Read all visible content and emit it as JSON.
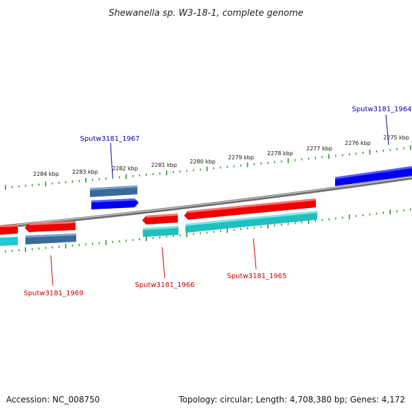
{
  "title": "Shewanella sp. W3-18-1, complete genome",
  "footer": {
    "accession": "Accession: NC_008750",
    "summary": "Topology: circular; Length: 4,708,380 bp; Genes: 4,172"
  },
  "kbp_labels": [
    "2284 kbp",
    "2283 kbp",
    "2282 kbp",
    "2281 kbp",
    "2280 kbp",
    "2279 kbp",
    "2278 kbp",
    "2277 kbp",
    "2276 kbp",
    "2275 kbp"
  ],
  "gene_labels": {
    "g1964": "Sputw3181_1964",
    "g1967": "Sputw3181_1967",
    "g1966": "Sputw3181_1966",
    "g1965": "Sputw3181_1965",
    "g1969": "Sputw3181_1969"
  },
  "colors": {
    "forward_cds": "#0000ee",
    "forward_gene": "#3a6a9a",
    "reverse_cds": "#ee0000",
    "reverse_gene": "#20c0c0",
    "tick": "#2a8a2a",
    "backbone": "#888888",
    "label_forward": "#0000aa",
    "label_reverse": "#cc0000"
  }
}
